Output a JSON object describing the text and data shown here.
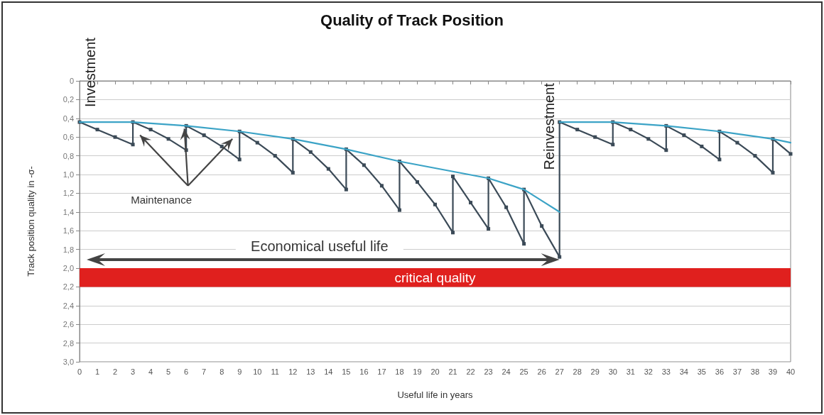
{
  "chart_data": {
    "type": "line",
    "title": "Quality of Track Position",
    "xlabel": "Useful life in years",
    "ylabel": "Track position quality in -σ-",
    "xlim": [
      0,
      40
    ],
    "xticks": [
      0,
      1,
      2,
      3,
      4,
      5,
      6,
      7,
      8,
      9,
      10,
      11,
      12,
      13,
      14,
      15,
      16,
      17,
      18,
      19,
      20,
      21,
      22,
      23,
      24,
      25,
      26,
      27,
      28,
      29,
      30,
      31,
      32,
      33,
      34,
      35,
      36,
      37,
      38,
      39,
      40
    ],
    "ylim": [
      3.0,
      0
    ],
    "yticks": [
      0,
      {
        "value": 0.2,
        "label": "0,2"
      },
      {
        "value": 0.4,
        "label": "0,4"
      },
      {
        "value": 0.6,
        "label": "0,6"
      },
      {
        "value": 0.8,
        "label": "0,8"
      },
      {
        "value": 1.0,
        "label": "1,0"
      },
      {
        "value": 1.2,
        "label": "1,2"
      },
      {
        "value": 1.4,
        "label": "1,4"
      },
      {
        "value": 1.6,
        "label": "1,6"
      },
      {
        "value": 1.8,
        "label": "1,8"
      },
      {
        "value": 2.0,
        "label": "2,0"
      },
      {
        "value": 2.2,
        "label": "2,2"
      },
      {
        "value": 2.4,
        "label": "2,4"
      },
      {
        "value": 2.6,
        "label": "2,6"
      },
      {
        "value": 2.8,
        "label": "2,8"
      },
      {
        "value": 3.0,
        "label": "3,0"
      }
    ],
    "grid": "y",
    "marker": "square",
    "series": [
      {
        "color": "#3b4a57",
        "x": [
          0,
          1,
          2,
          3,
          3,
          4,
          5,
          6,
          6,
          7,
          8,
          9,
          9,
          10,
          11,
          12,
          12,
          13,
          14,
          15,
          15,
          16,
          17,
          18,
          18,
          19,
          20,
          21,
          21,
          22,
          23,
          23,
          24,
          25,
          25,
          26,
          27,
          27,
          28,
          29,
          30,
          30,
          31,
          32,
          33,
          33,
          34,
          35,
          36,
          36,
          37,
          38,
          39,
          39,
          40
        ],
        "values": [
          0.44,
          0.52,
          0.6,
          0.68,
          0.44,
          0.52,
          0.62,
          0.74,
          0.48,
          0.58,
          0.7,
          0.84,
          0.54,
          0.66,
          0.8,
          0.98,
          0.62,
          0.76,
          0.94,
          1.16,
          0.73,
          0.9,
          1.12,
          1.38,
          0.86,
          1.08,
          1.32,
          1.62,
          1.02,
          1.3,
          1.58,
          1.04,
          1.35,
          1.74,
          1.16,
          1.55,
          1.88,
          0.44,
          0.52,
          0.6,
          0.68,
          0.44,
          0.52,
          0.62,
          0.74,
          0.48,
          0.58,
          0.7,
          0.84,
          0.54,
          0.66,
          0.8,
          0.98,
          0.62,
          0.78
        ]
      },
      {
        "color": "#3ba3c6",
        "marker": "none",
        "x": [
          0,
          3,
          6,
          9,
          12,
          15,
          18,
          23,
          25,
          27
        ],
        "values": [
          0.44,
          0.44,
          0.48,
          0.54,
          0.62,
          0.73,
          0.86,
          1.04,
          1.16,
          1.4
        ]
      },
      {
        "color": "#3ba3c6",
        "marker": "none",
        "x": [
          27,
          30,
          33,
          36,
          39,
          40
        ],
        "values": [
          0.44,
          0.44,
          0.48,
          0.54,
          0.62,
          0.66
        ]
      }
    ],
    "bands": [
      {
        "axis": "y",
        "from": 2.0,
        "to": 2.2,
        "label": "critical quality",
        "color": "#e0201e"
      }
    ],
    "annotations": [
      "Investment",
      "Reinvestment",
      {
        "text": "Maintenance",
        "x": 6,
        "y": 0.48
      },
      "Economical useful life"
    ]
  }
}
